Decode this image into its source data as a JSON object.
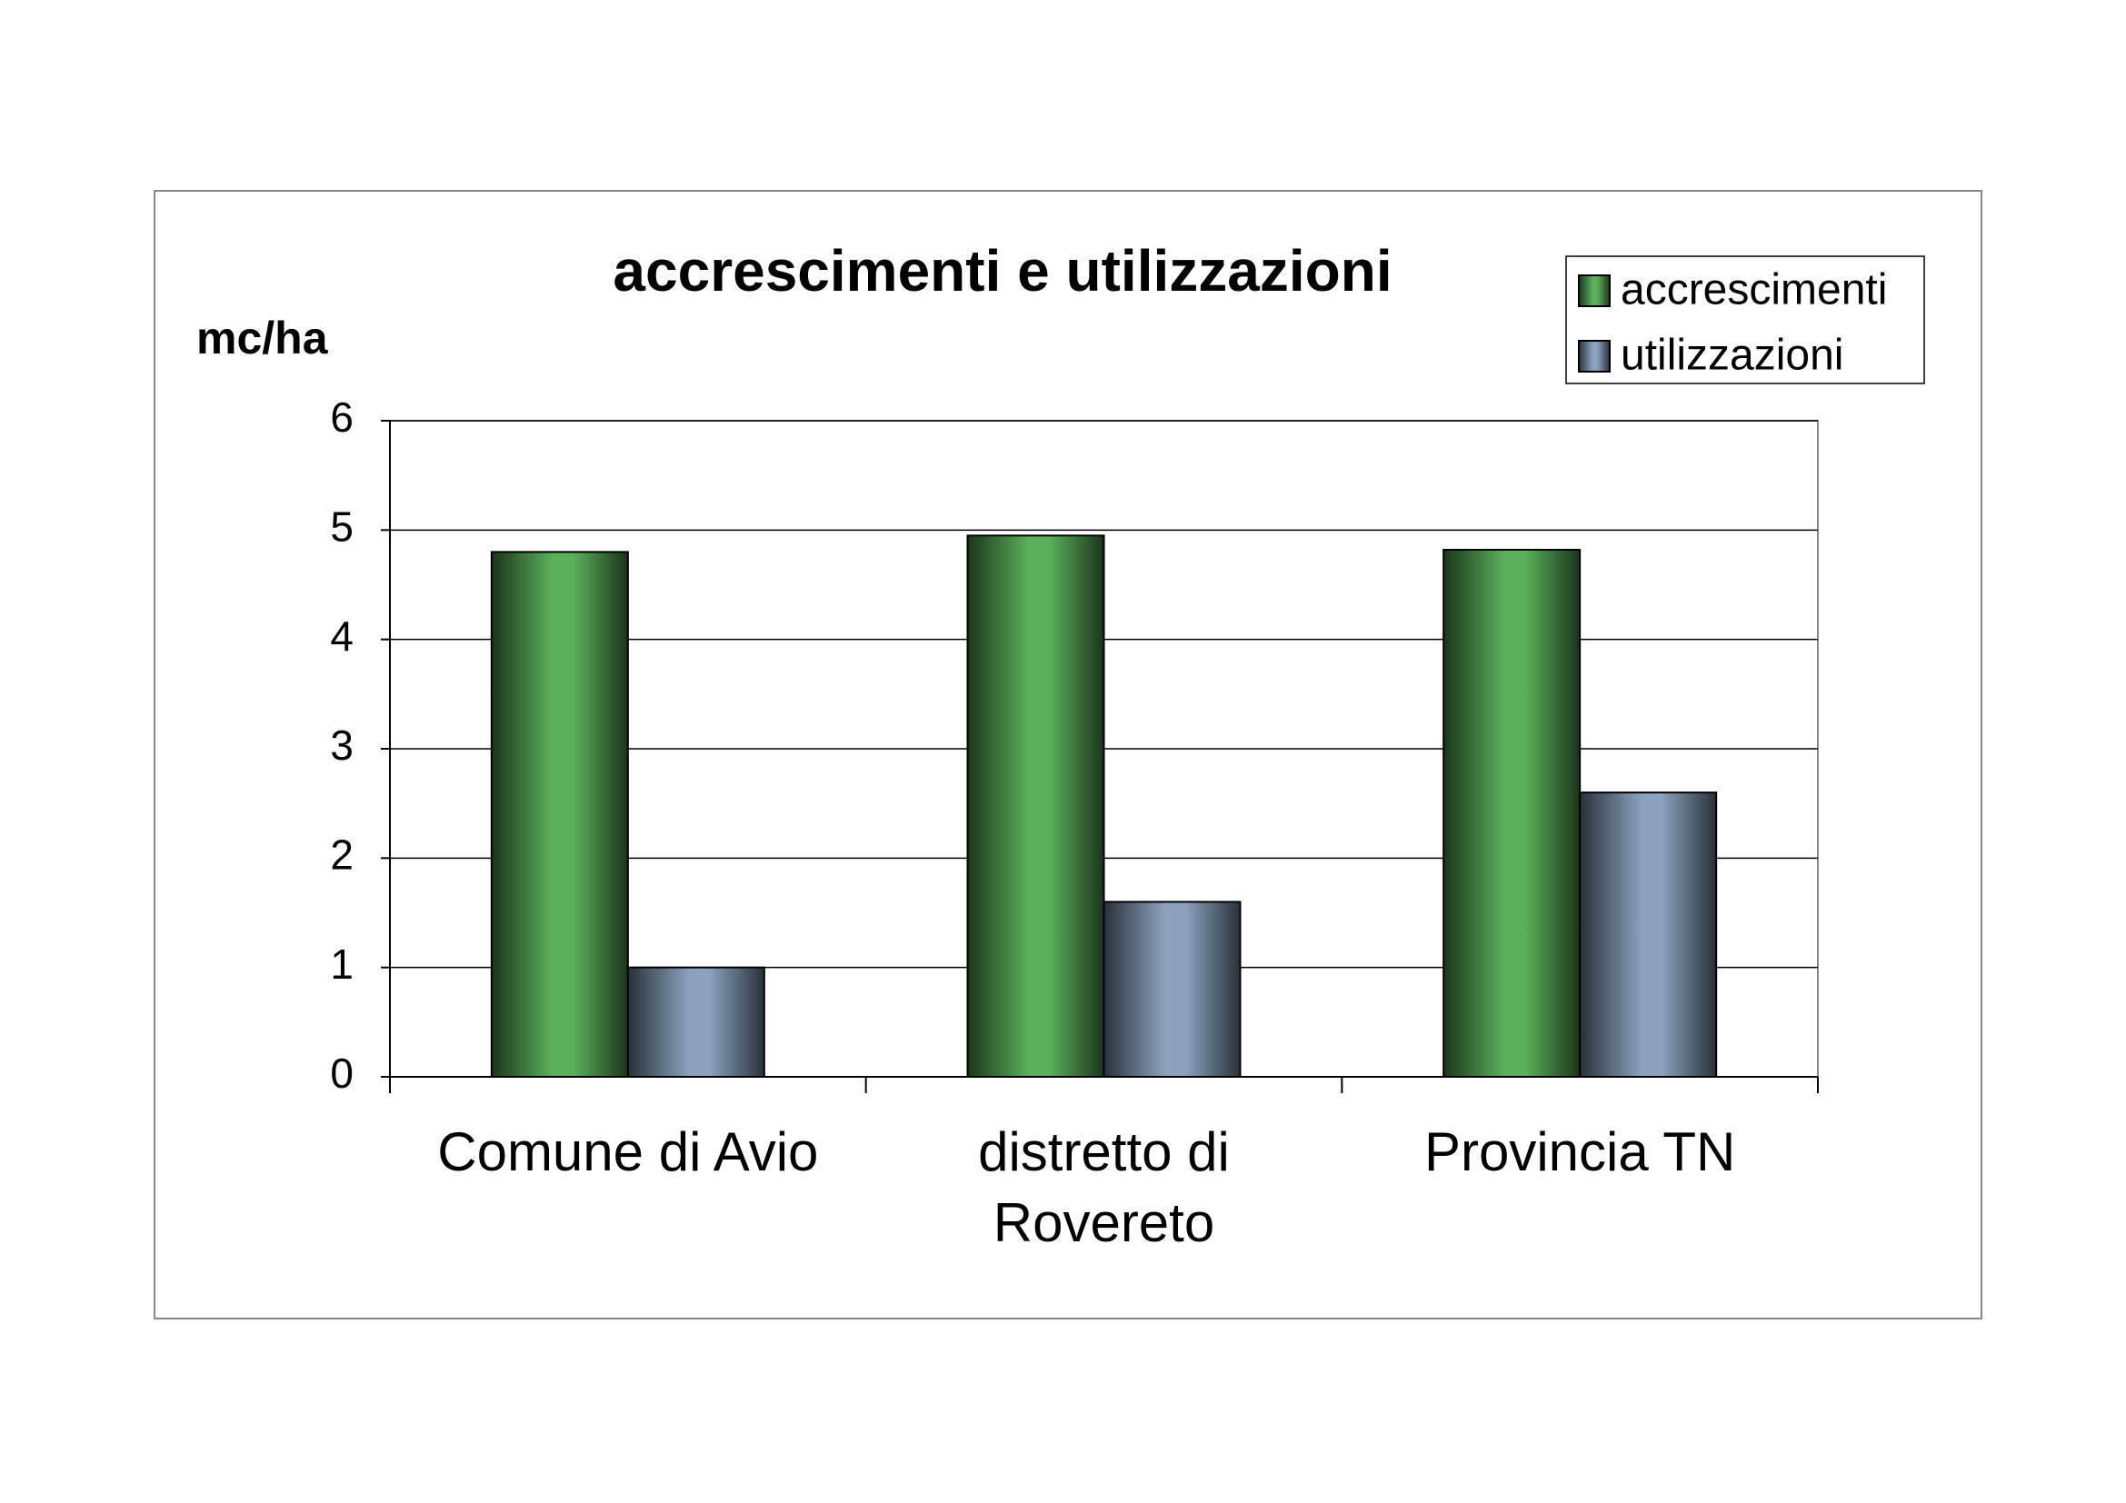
{
  "chart_data": {
    "type": "bar",
    "title": "accrescimenti e utilizzazioni",
    "y_label": "mc/ha",
    "categories": [
      "Comune di Avio",
      "distretto di Rovereto",
      "Provincia TN"
    ],
    "series": [
      {
        "name": "accrescimenti",
        "color": "#5bb05b",
        "values": [
          4.8,
          4.95,
          4.82
        ]
      },
      {
        "name": "utilizzazioni",
        "color": "#8aa2bd",
        "values": [
          1.0,
          1.6,
          2.6
        ]
      }
    ],
    "ylim": [
      0,
      6
    ],
    "yticks": [
      0,
      1,
      2,
      3,
      4,
      5,
      6
    ],
    "grid": true,
    "legend": "top-right"
  }
}
